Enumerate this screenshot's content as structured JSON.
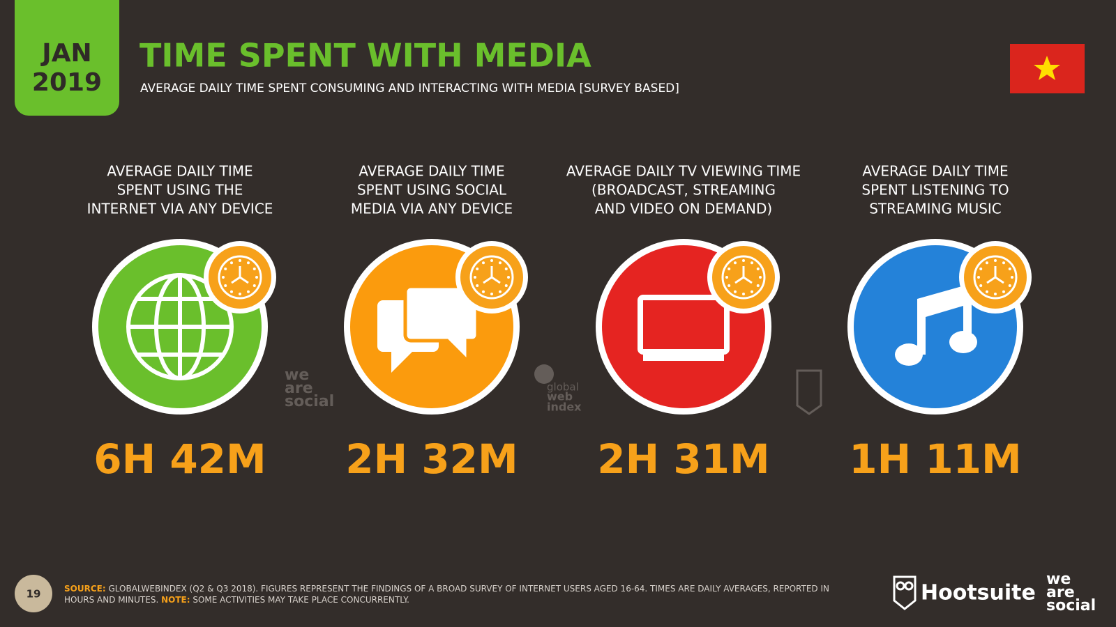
{
  "date_badge": {
    "month": "JAN",
    "year": "2019"
  },
  "header": {
    "title": "TIME SPENT WITH MEDIA",
    "subtitle": "AVERAGE DAILY TIME SPENT CONSUMING AND INTERACTING WITH MEDIA [SURVEY BASED]"
  },
  "stats": [
    {
      "label_lines": [
        "AVERAGE DAILY TIME",
        "SPENT USING THE",
        "INTERNET VIA ANY DEVICE"
      ],
      "value": "6H 42M",
      "color": "#6abf2c",
      "icon": "globe"
    },
    {
      "label_lines": [
        "AVERAGE DAILY TIME",
        "SPENT USING SOCIAL",
        "MEDIA VIA ANY DEVICE"
      ],
      "value": "2H 32M",
      "color": "#fb9b0d",
      "icon": "chat"
    },
    {
      "label_lines": [
        "AVERAGE DAILY TV VIEWING TIME",
        "(BROADCAST, STREAMING",
        "AND VIDEO ON DEMAND)"
      ],
      "value": "2H 31M",
      "color": "#e52421",
      "icon": "tv"
    },
    {
      "label_lines": [
        "AVERAGE DAILY TIME",
        "SPENT LISTENING TO",
        "STREAMING MUSIC"
      ],
      "value": "1H 11M",
      "color": "#2482d9",
      "icon": "music"
    }
  ],
  "watermarks": {
    "we_are_social": [
      "we",
      "are",
      "social"
    ],
    "globalwebindex": [
      "global",
      "web",
      "index"
    ]
  },
  "footer": {
    "page": "19",
    "source_label": "SOURCE:",
    "source": "GLOBALWEBINDEX (Q2 & Q3 2018). FIGURES REPRESENT THE FINDINGS OF A BROAD SURVEY OF INTERNET USERS AGED 16-64. TIMES ARE DAILY AVERAGES, REPORTED IN HOURS AND MINUTES.",
    "note_label": "NOTE:",
    "note": "SOME ACTIVITIES MAY TAKE PLACE CONCURRENTLY."
  },
  "brands": {
    "hootsuite": "Hootsuite",
    "we_are_social": [
      "we",
      "are",
      "social"
    ]
  }
}
